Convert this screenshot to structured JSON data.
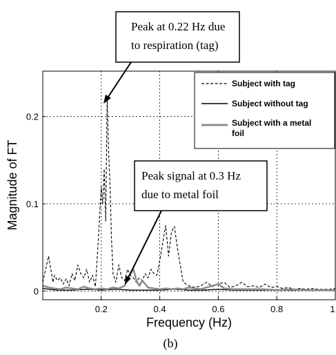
{
  "chart_data": {
    "type": "line",
    "title": "",
    "xlabel": "Frequency (Hz)",
    "ylabel": "Magnitude of FT",
    "xlim": [
      0,
      1
    ],
    "ylim": [
      -0.01,
      0.252
    ],
    "xticks": [
      0.2,
      0.4,
      0.6,
      0.8,
      1
    ],
    "xtick_labels": [
      "0.2",
      "0.4",
      "0.6",
      "0.8",
      "1"
    ],
    "yticks": [
      0,
      0.1,
      0.2
    ],
    "ytick_labels": [
      "0",
      "0.1",
      "0.2"
    ],
    "grid": true,
    "legend_position": "top-right",
    "caption": "(b)",
    "series": [
      {
        "name": "Subject with tag",
        "style": "dashed",
        "color": "#000000",
        "x": [
          0.0,
          0.01,
          0.02,
          0.03,
          0.035,
          0.04,
          0.05,
          0.06,
          0.07,
          0.08,
          0.09,
          0.1,
          0.11,
          0.12,
          0.13,
          0.14,
          0.15,
          0.16,
          0.17,
          0.18,
          0.19,
          0.2,
          0.205,
          0.21,
          0.215,
          0.22,
          0.225,
          0.23,
          0.235,
          0.24,
          0.25,
          0.26,
          0.27,
          0.28,
          0.29,
          0.3,
          0.31,
          0.32,
          0.33,
          0.34,
          0.35,
          0.36,
          0.37,
          0.38,
          0.39,
          0.4,
          0.41,
          0.42,
          0.43,
          0.44,
          0.45,
          0.46,
          0.47,
          0.48,
          0.5,
          0.52,
          0.54,
          0.56,
          0.58,
          0.6,
          0.62,
          0.64,
          0.66,
          0.68,
          0.7,
          0.72,
          0.74,
          0.76,
          0.78,
          0.8,
          0.82,
          0.84,
          0.86,
          0.88,
          0.9,
          0.92,
          0.94,
          0.96,
          0.98,
          1.0
        ],
        "y": [
          0.01,
          0.025,
          0.04,
          0.02,
          0.01,
          0.018,
          0.012,
          0.015,
          0.008,
          0.014,
          0.006,
          0.02,
          0.012,
          0.03,
          0.02,
          0.015,
          0.025,
          0.01,
          0.018,
          0.005,
          0.06,
          0.12,
          0.1,
          0.14,
          0.08,
          0.222,
          0.16,
          0.12,
          0.06,
          0.02,
          0.01,
          0.03,
          0.015,
          0.012,
          0.025,
          0.018,
          0.015,
          0.01,
          0.015,
          0.012,
          0.02,
          0.015,
          0.025,
          0.02,
          0.018,
          0.035,
          0.055,
          0.075,
          0.04,
          0.068,
          0.074,
          0.05,
          0.03,
          0.01,
          0.006,
          0.004,
          0.006,
          0.01,
          0.005,
          0.008,
          0.01,
          0.004,
          0.006,
          0.01,
          0.005,
          0.006,
          0.004,
          0.008,
          0.004,
          0.005,
          0.003,
          0.004,
          0.002,
          0.003,
          0.002,
          0.003,
          0.002,
          0.002,
          0.002,
          0.003
        ]
      },
      {
        "name": "Subject without tag",
        "style": "solid",
        "color": "#000000",
        "x": [
          0.0,
          0.02,
          0.05,
          0.1,
          0.15,
          0.2,
          0.25,
          0.3,
          0.35,
          0.4,
          0.45,
          0.5,
          0.55,
          0.6,
          0.65,
          0.7,
          0.75,
          0.8,
          0.85,
          0.9,
          0.95,
          1.0
        ],
        "y": [
          0.003,
          0.002,
          0.001,
          0.001,
          0.002,
          0.001,
          0.002,
          0.001,
          0.001,
          0.001,
          0.002,
          0.001,
          0.001,
          0.002,
          0.001,
          0.001,
          0.001,
          0.001,
          0.001,
          0.001,
          0.001,
          0.001
        ]
      },
      {
        "name": "Subject with a metal foil",
        "style": "solid",
        "color": "#8c8c8c",
        "x": [
          0.0,
          0.02,
          0.04,
          0.06,
          0.08,
          0.1,
          0.12,
          0.14,
          0.16,
          0.18,
          0.2,
          0.22,
          0.24,
          0.26,
          0.28,
          0.29,
          0.3,
          0.31,
          0.32,
          0.33,
          0.34,
          0.35,
          0.36,
          0.38,
          0.4,
          0.42,
          0.44,
          0.46,
          0.48,
          0.5,
          0.52,
          0.54,
          0.56,
          0.58,
          0.6,
          0.62,
          0.65,
          0.7,
          0.75,
          0.8,
          0.85,
          0.9,
          0.95,
          1.0
        ],
        "y": [
          0.006,
          0.004,
          0.003,
          0.002,
          0.004,
          0.003,
          0.002,
          0.005,
          0.003,
          0.002,
          0.003,
          0.002,
          0.004,
          0.003,
          0.006,
          0.015,
          0.02,
          0.025,
          0.012,
          0.006,
          0.012,
          0.008,
          0.004,
          0.003,
          0.002,
          0.003,
          0.002,
          0.003,
          0.002,
          0.004,
          0.003,
          0.002,
          0.004,
          0.006,
          0.008,
          0.003,
          0.002,
          0.002,
          0.002,
          0.001,
          0.002,
          0.001,
          0.001,
          0.001
        ]
      }
    ],
    "annotations": [
      {
        "lines": [
          "Peak at 0.22 Hz due",
          "to respiration (tag)"
        ],
        "target_x": 0.225,
        "target_y": 0.222
      },
      {
        "lines": [
          "Peak signal at 0.3 Hz",
          "due to metal foil"
        ],
        "target_x": 0.3,
        "target_y": 0.001
      }
    ]
  }
}
